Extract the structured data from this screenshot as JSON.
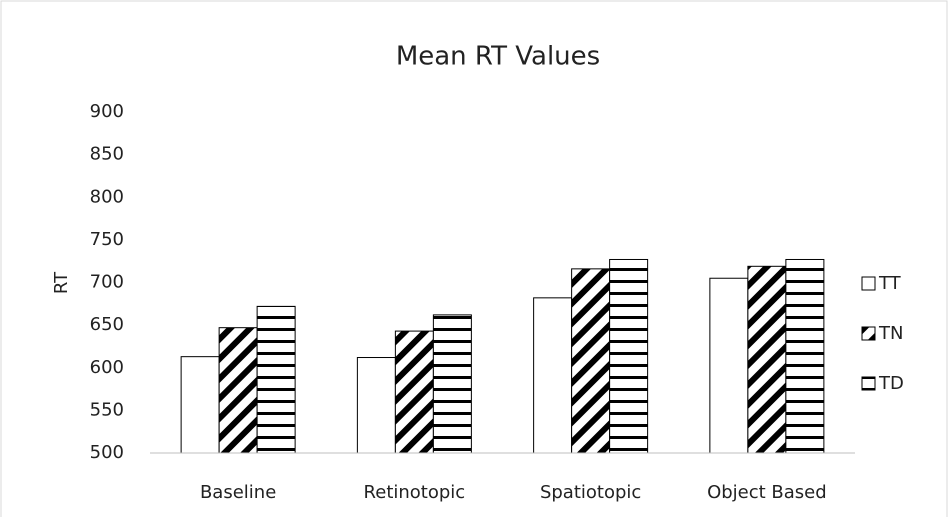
{
  "chart_data": {
    "type": "bar",
    "title": "Mean RT Values",
    "y_label": "RT",
    "categories": [
      "Baseline",
      "Retinotopic",
      "Spatiotopic",
      "Object Based"
    ],
    "series": [
      {
        "name": "TT",
        "color": "#000000",
        "pattern": "none",
        "values": [
          613,
          612,
          682,
          705
        ]
      },
      {
        "name": "TN",
        "color": "#000000",
        "pattern": "diagonal",
        "values": [
          647,
          643,
          716,
          719
        ]
      },
      {
        "name": "TD",
        "color": "#000000",
        "pattern": "horizontal",
        "values": [
          672,
          662,
          727,
          727
        ]
      }
    ],
    "ylim": [
      500,
      900
    ],
    "yticks": [
      500,
      550,
      600,
      650,
      700,
      750,
      800,
      850,
      900
    ],
    "grid": false,
    "legend": "right"
  }
}
